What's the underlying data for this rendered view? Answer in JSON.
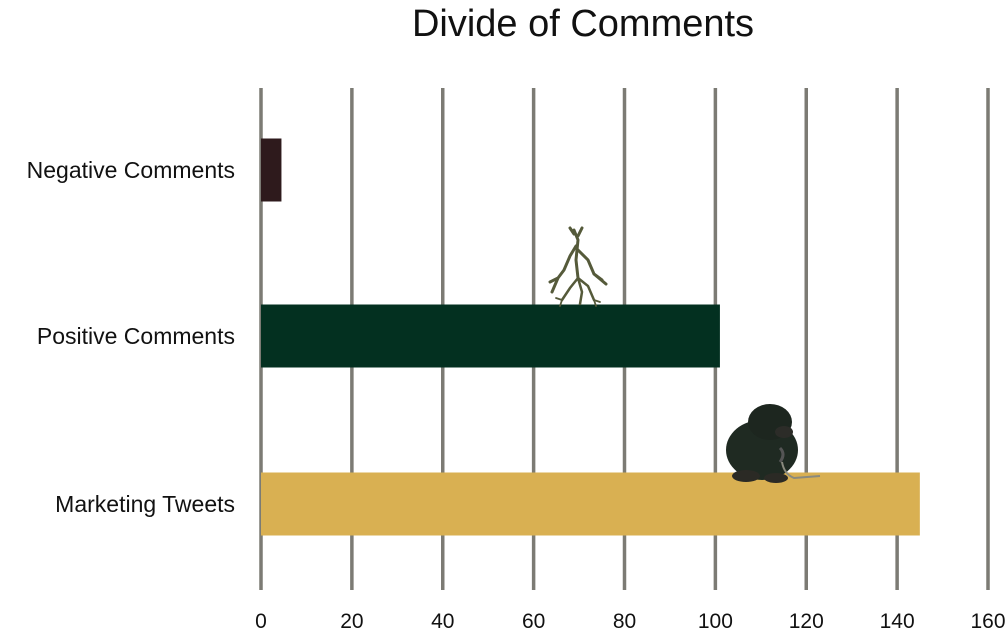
{
  "chart_data": {
    "type": "bar",
    "orientation": "horizontal",
    "title": "Divide of Comments",
    "categories": [
      "Negative Comments",
      "Positive Comments",
      "Marketing Tweets"
    ],
    "values": [
      4.5,
      101,
      145
    ],
    "bar_colors": [
      "#2e1a1c",
      "#033020",
      "#d9b052"
    ],
    "xlim": [
      0,
      160
    ],
    "xticks": [
      0,
      20,
      40,
      60,
      80,
      100,
      120,
      140,
      160
    ],
    "xlabel": "",
    "ylabel": "",
    "grid": true,
    "legend": "none",
    "gridline_color": "#7c7b74",
    "decorations": [
      "stick-figure-creature-illustration",
      "mole-creature-illustration"
    ]
  }
}
